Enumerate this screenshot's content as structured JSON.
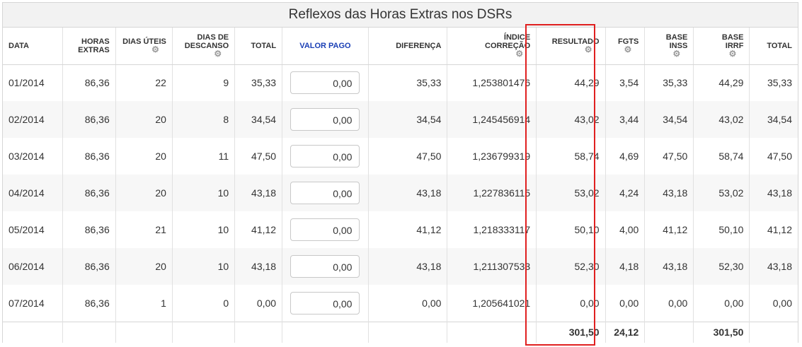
{
  "title": "Reflexos das Horas Extras nos DSRs",
  "headers": {
    "data": "DATA",
    "horas_extras_1": "HORAS",
    "horas_extras_2": "EXTRAS",
    "dias_uteis": "DIAS ÚTEIS",
    "dias_descanso_1": "DIAS DE",
    "dias_descanso_2": "DESCANSO",
    "total": "TOTAL",
    "valor_pago": "VALOR PAGO",
    "diferenca": "DIFERENÇA",
    "indice_1": "ÍNDICE",
    "indice_2": "CORREÇÃO",
    "resultado": "RESULTADO",
    "fgts": "FGTS",
    "base_inss_1": "BASE",
    "base_inss_2": "INSS",
    "base_irrf_1": "BASE",
    "base_irrf_2": "IRRF",
    "total2": "TOTAL"
  },
  "icons": {
    "settings": "gear-icon"
  },
  "rows": [
    {
      "data": "01/2014",
      "horas": "86,36",
      "uteis": "22",
      "descanso": "9",
      "total": "35,33",
      "valor_pago": "0,00",
      "diferenca": "35,33",
      "indice": "1,253801476",
      "resultado": "44,29",
      "fgts": "3,54",
      "inss": "35,33",
      "irrf": "44,29",
      "total2": "35,33"
    },
    {
      "data": "02/2014",
      "horas": "86,36",
      "uteis": "20",
      "descanso": "8",
      "total": "34,54",
      "valor_pago": "0,00",
      "diferenca": "34,54",
      "indice": "1,245456914",
      "resultado": "43,02",
      "fgts": "3,44",
      "inss": "34,54",
      "irrf": "43,02",
      "total2": "34,54"
    },
    {
      "data": "03/2014",
      "horas": "86,36",
      "uteis": "20",
      "descanso": "11",
      "total": "47,50",
      "valor_pago": "0,00",
      "diferenca": "47,50",
      "indice": "1,236799319",
      "resultado": "58,74",
      "fgts": "4,69",
      "inss": "47,50",
      "irrf": "58,74",
      "total2": "47,50"
    },
    {
      "data": "04/2014",
      "horas": "86,36",
      "uteis": "20",
      "descanso": "10",
      "total": "43,18",
      "valor_pago": "0,00",
      "diferenca": "43,18",
      "indice": "1,227836115",
      "resultado": "53,02",
      "fgts": "4,24",
      "inss": "43,18",
      "irrf": "53,02",
      "total2": "43,18"
    },
    {
      "data": "05/2014",
      "horas": "86,36",
      "uteis": "21",
      "descanso": "10",
      "total": "41,12",
      "valor_pago": "0,00",
      "diferenca": "41,12",
      "indice": "1,218333117",
      "resultado": "50,10",
      "fgts": "4,00",
      "inss": "41,12",
      "irrf": "50,10",
      "total2": "41,12"
    },
    {
      "data": "06/2014",
      "horas": "86,36",
      "uteis": "20",
      "descanso": "10",
      "total": "43,18",
      "valor_pago": "0,00",
      "diferenca": "43,18",
      "indice": "1,211307533",
      "resultado": "52,30",
      "fgts": "4,18",
      "inss": "43,18",
      "irrf": "52,30",
      "total2": "43,18"
    },
    {
      "data": "07/2014",
      "horas": "86,36",
      "uteis": "1",
      "descanso": "0",
      "total": "0,00",
      "valor_pago": "0,00",
      "diferenca": "0,00",
      "indice": "1,205641021",
      "resultado": "0,00",
      "fgts": "0,00",
      "inss": "0,00",
      "irrf": "0,00",
      "total2": "0,00"
    }
  ],
  "totals": {
    "resultado": "301,50",
    "fgts": "24,12",
    "irrf": "301,50"
  },
  "colors": {
    "highlight": "#e02020",
    "valor_pago_header": "#1a3fb5"
  }
}
